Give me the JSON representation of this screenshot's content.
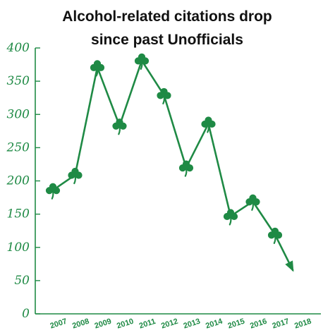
{
  "chart_data": {
    "type": "line",
    "title": "Alcohol-related citations drop",
    "subtitle": "since past Unofficials",
    "xlabel": "",
    "ylabel": "",
    "categories": [
      "2007",
      "2008",
      "2009",
      "2010",
      "2011",
      "2012",
      "2013",
      "2014",
      "2015",
      "2016",
      "2017",
      "2018"
    ],
    "series": [
      {
        "values": [
          186,
          209,
          371,
          283,
          381,
          329,
          220,
          286,
          147,
          169,
          119,
          null
        ]
      }
    ],
    "trend_arrow": {
      "from_category": "2017",
      "to_category": "2018",
      "to_value": 65
    },
    "yticks": [
      0,
      50,
      100,
      150,
      200,
      250,
      300,
      350,
      400
    ],
    "ylim": [
      0,
      400
    ],
    "grid": false,
    "legend": "none",
    "marker": "shamrock-icon",
    "colors": {
      "line": "#1f8a45",
      "axis": "#1f8a45",
      "title": "#111111"
    }
  }
}
